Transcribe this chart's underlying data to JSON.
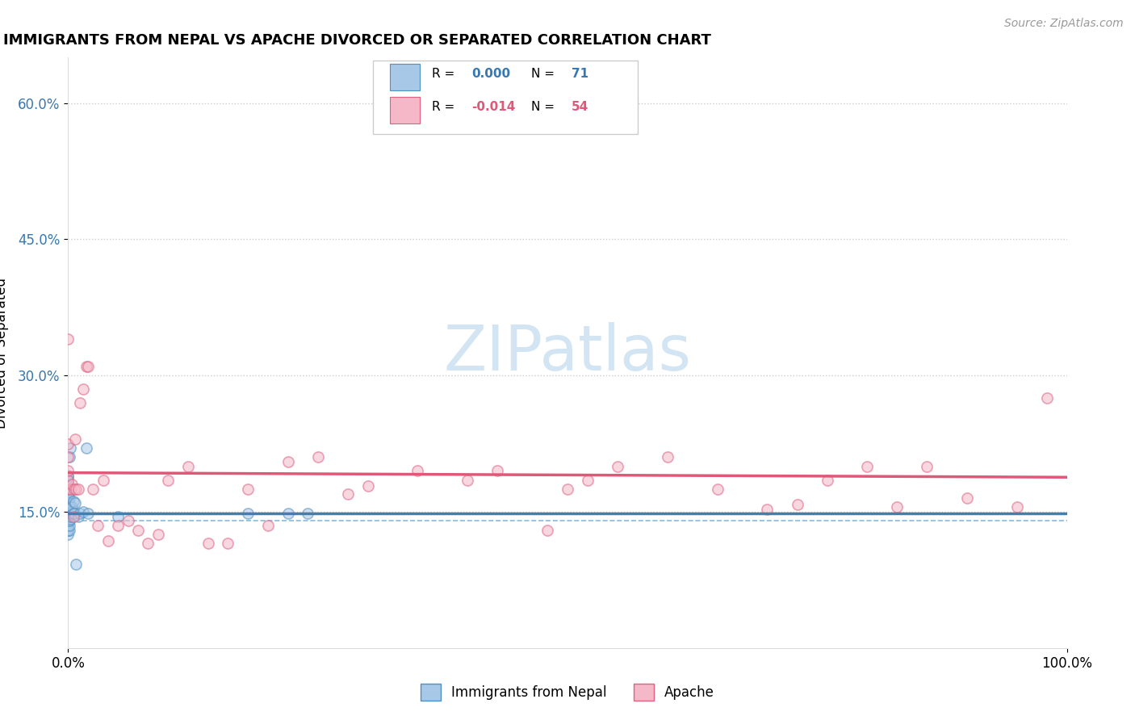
{
  "title": "IMMIGRANTS FROM NEPAL VS APACHE DIVORCED OR SEPARATED CORRELATION CHART",
  "source_text": "Source: ZipAtlas.com",
  "ylabel": "Divorced or Separated",
  "blue_color": "#a8c8e8",
  "pink_color": "#f4b8c8",
  "blue_edge_color": "#5090c0",
  "pink_edge_color": "#e06080",
  "blue_line_color": "#4080b0",
  "pink_line_color": "#e05878",
  "blue_text_color": "#3878b0",
  "pink_text_color": "#e05878",
  "watermark_color": "#c8dff0",
  "xlim": [
    0.0,
    1.0
  ],
  "ylim": [
    0.0,
    0.65
  ],
  "xticks": [
    0.0,
    1.0
  ],
  "xtick_labels": [
    "0.0%",
    "100.0%"
  ],
  "yticks": [
    0.15,
    0.3,
    0.45,
    0.6
  ],
  "ytick_labels": [
    "15.0%",
    "30.0%",
    "45.0%",
    "60.0%"
  ],
  "nepal_x": [
    0.0,
    0.0,
    0.0,
    0.0,
    0.0,
    0.0,
    0.0,
    0.0,
    0.0,
    0.0,
    0.0,
    0.0,
    0.0,
    0.0,
    0.0,
    0.0,
    0.0,
    0.0,
    0.0,
    0.0,
    0.0,
    0.0,
    0.0,
    0.0,
    0.0,
    0.0,
    0.0,
    0.0,
    0.0,
    0.0,
    0.0,
    0.0,
    0.0,
    0.0,
    0.0,
    0.0,
    0.0,
    0.0,
    0.0,
    0.0,
    0.001,
    0.001,
    0.001,
    0.001,
    0.001,
    0.001,
    0.001,
    0.001,
    0.001,
    0.002,
    0.002,
    0.002,
    0.002,
    0.003,
    0.003,
    0.004,
    0.004,
    0.005,
    0.005,
    0.006,
    0.007,
    0.008,
    0.01,
    0.012,
    0.015,
    0.018,
    0.02,
    0.05,
    0.18,
    0.22,
    0.24
  ],
  "nepal_y": [
    0.125,
    0.13,
    0.13,
    0.135,
    0.14,
    0.14,
    0.14,
    0.145,
    0.145,
    0.15,
    0.15,
    0.15,
    0.15,
    0.153,
    0.155,
    0.155,
    0.158,
    0.16,
    0.16,
    0.16,
    0.162,
    0.163,
    0.165,
    0.165,
    0.165,
    0.167,
    0.168,
    0.17,
    0.17,
    0.17,
    0.172,
    0.175,
    0.175,
    0.178,
    0.18,
    0.18,
    0.183,
    0.185,
    0.188,
    0.19,
    0.13,
    0.135,
    0.14,
    0.145,
    0.15,
    0.155,
    0.16,
    0.165,
    0.21,
    0.142,
    0.148,
    0.155,
    0.22,
    0.145,
    0.15,
    0.147,
    0.155,
    0.148,
    0.162,
    0.148,
    0.16,
    0.092,
    0.145,
    0.148,
    0.15,
    0.22,
    0.148,
    0.145,
    0.148,
    0.148,
    0.148
  ],
  "nepal_line_x": [
    0.0,
    1.0
  ],
  "nepal_line_y": [
    0.148,
    0.148
  ],
  "apache_x": [
    0.0,
    0.0,
    0.0,
    0.0,
    0.0,
    0.0,
    0.003,
    0.004,
    0.005,
    0.006,
    0.007,
    0.008,
    0.01,
    0.012,
    0.015,
    0.018,
    0.02,
    0.025,
    0.03,
    0.035,
    0.04,
    0.05,
    0.06,
    0.07,
    0.08,
    0.09,
    0.1,
    0.12,
    0.14,
    0.16,
    0.18,
    0.2,
    0.22,
    0.25,
    0.28,
    0.3,
    0.35,
    0.4,
    0.43,
    0.48,
    0.5,
    0.52,
    0.55,
    0.6,
    0.65,
    0.7,
    0.73,
    0.76,
    0.8,
    0.83,
    0.86,
    0.9,
    0.95,
    0.98
  ],
  "apache_y": [
    0.175,
    0.185,
    0.195,
    0.21,
    0.225,
    0.34,
    0.175,
    0.18,
    0.145,
    0.175,
    0.23,
    0.175,
    0.175,
    0.27,
    0.285,
    0.31,
    0.31,
    0.175,
    0.135,
    0.185,
    0.118,
    0.135,
    0.14,
    0.13,
    0.115,
    0.125,
    0.185,
    0.2,
    0.115,
    0.115,
    0.175,
    0.135,
    0.205,
    0.21,
    0.17,
    0.178,
    0.195,
    0.185,
    0.195,
    0.13,
    0.175,
    0.185,
    0.2,
    0.21,
    0.175,
    0.153,
    0.158,
    0.185,
    0.2,
    0.155,
    0.2,
    0.165,
    0.155,
    0.275
  ],
  "apache_line_x": [
    0.0,
    1.0
  ],
  "apache_line_y": [
    0.193,
    0.188
  ],
  "dashed_line_y": 0.14,
  "marker_size": 90,
  "alpha": 0.55,
  "background_color": "#ffffff",
  "grid_color": "#cccccc",
  "watermark": "ZIPatlas"
}
